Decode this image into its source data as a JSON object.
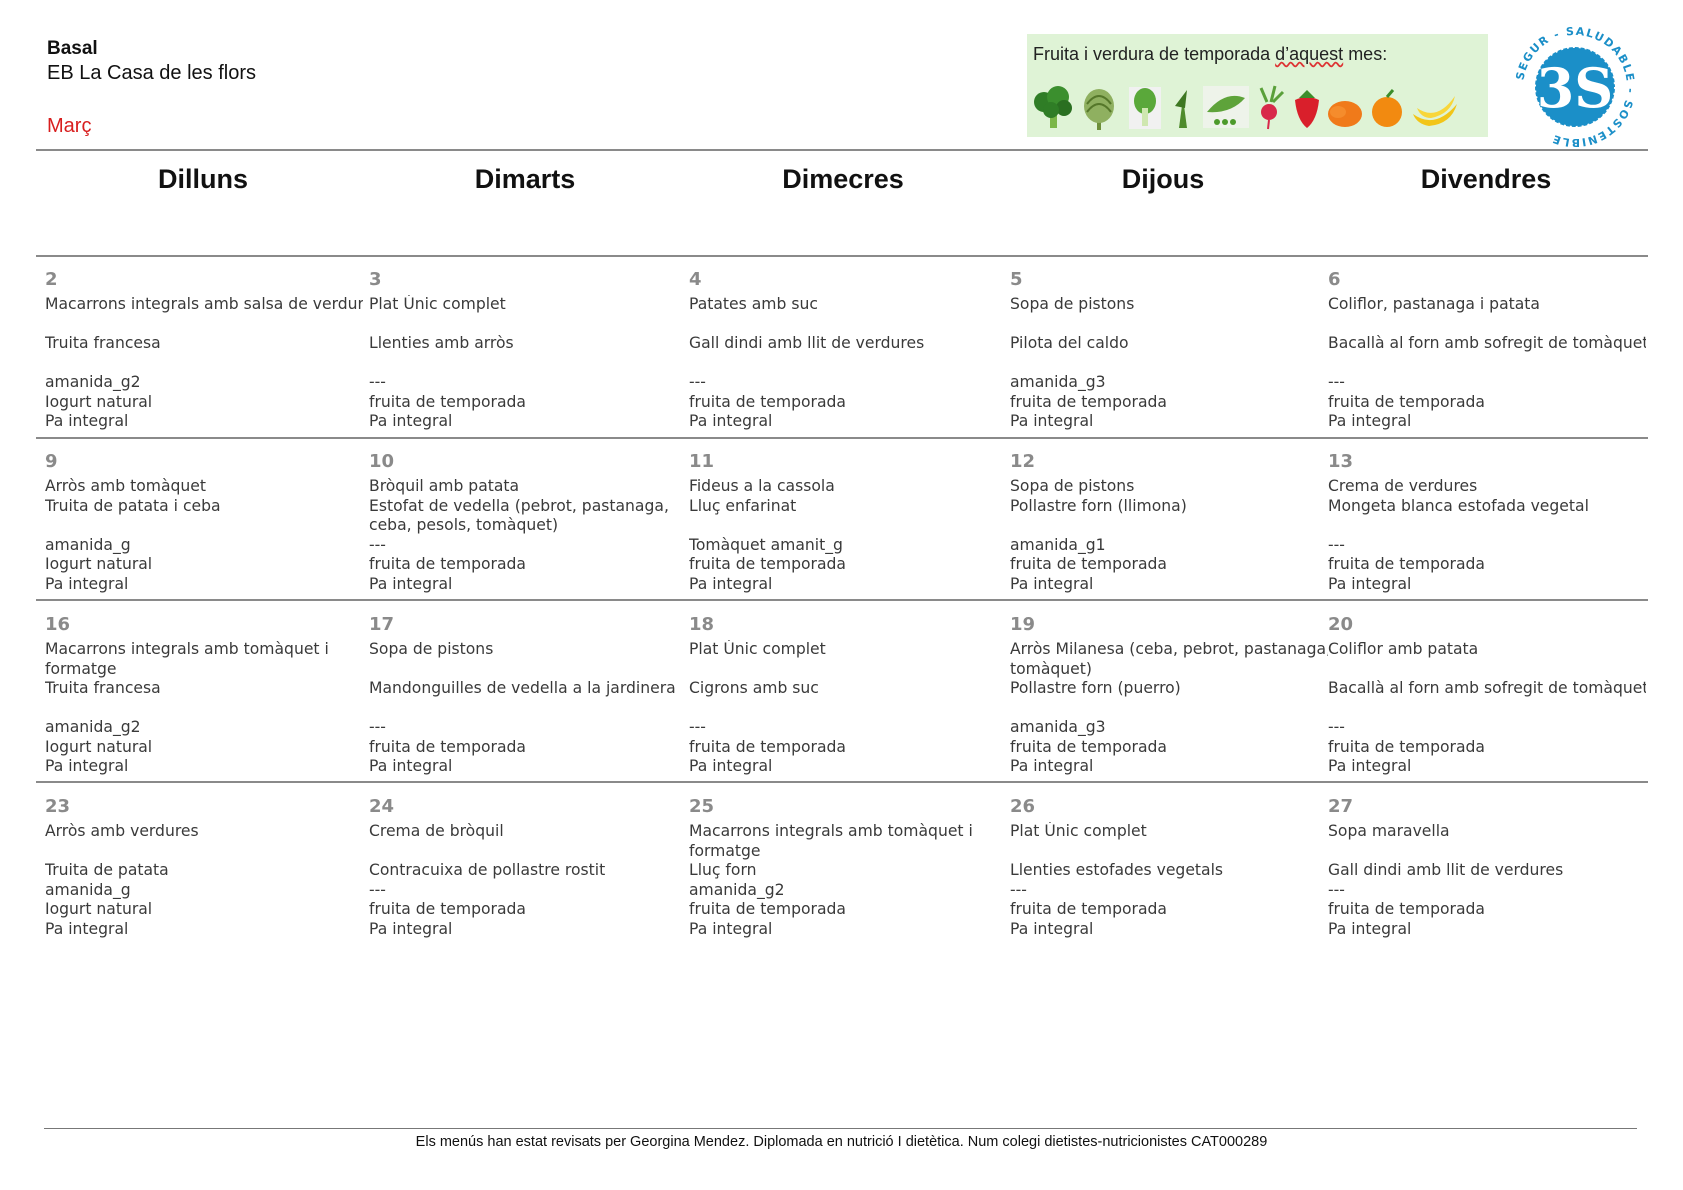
{
  "header": {
    "menu_type": "Basal",
    "school": "EB La Casa de les flors",
    "month": "Març"
  },
  "season_box": {
    "title_pre": "Fruita i verdura de temporada ",
    "title_word1": "d’aquest",
    "title_post": " mes:",
    "icons": [
      "broccoli-icon",
      "artichoke-icon",
      "chard-icon",
      "asparagus-icon",
      "peas-icon",
      "radish-icon",
      "strawberry-icon",
      "mandarin-icon",
      "orange-icon",
      "banana-icon"
    ]
  },
  "logo": {
    "number": "3S",
    "ring_text": "SEGUR - SALUDABLE - SOSTENIBLE"
  },
  "days": [
    "Dilluns",
    "Dimarts",
    "Dimecres",
    "Dijous",
    "Divendres"
  ],
  "colors": {
    "month": "#d81e1e",
    "season_bg": "#dff3d6",
    "logo_blue": "#1b8fc8"
  },
  "weeks": [
    {
      "cells": [
        {
          "num": "2",
          "lines": [
            "Macarrons integrals amb salsa de verdures",
            "",
            "Truita francesa",
            "",
            "amanida_g2",
            "Iogurt natural",
            "Pa integral"
          ]
        },
        {
          "num": "3",
          "lines": [
            "Plat Únic complet",
            "",
            "Llenties amb arròs",
            "",
            "---",
            "fruita de temporada",
            "Pa integral"
          ]
        },
        {
          "num": "4",
          "lines": [
            "Patates amb suc",
            "",
            "Gall dindi amb llit de verdures",
            "",
            "---",
            "fruita de temporada",
            "Pa integral"
          ]
        },
        {
          "num": "5",
          "lines": [
            "Sopa de pistons",
            "",
            "Pilota del caldo",
            "",
            "amanida_g3",
            "fruita de temporada",
            "Pa integral"
          ]
        },
        {
          "num": "6",
          "lines": [
            "Coliflor, pastanaga i patata",
            "",
            "Bacallà al forn amb sofregit de tomàquet",
            "",
            "---",
            "fruita de temporada",
            "Pa integral"
          ]
        }
      ]
    },
    {
      "cells": [
        {
          "num": "9",
          "lines": [
            "Arròs amb tomàquet",
            "Truita de patata i ceba",
            "",
            "amanida_g",
            "Iogurt natural",
            "Pa integral"
          ]
        },
        {
          "num": "10",
          "lines": [
            "Bròquil amb patata",
            "Estofat de vedella (pebrot, pastanaga,",
            "ceba, pesols, tomàquet)",
            "---",
            "fruita de temporada",
            "Pa integral"
          ]
        },
        {
          "num": "11",
          "lines": [
            "Fideus a la cassola",
            "Lluç enfarinat",
            "",
            "Tomàquet amanit_g",
            "fruita de temporada",
            "Pa integral"
          ]
        },
        {
          "num": "12",
          "lines": [
            "Sopa de pistons",
            "Pollastre forn (llimona)",
            "",
            "amanida_g1",
            "fruita de temporada",
            "Pa integral"
          ]
        },
        {
          "num": "13",
          "lines": [
            "Crema de verdures",
            "Mongeta blanca estofada vegetal",
            "",
            "---",
            "fruita de temporada",
            "Pa integral"
          ]
        }
      ]
    },
    {
      "cells": [
        {
          "num": "16",
          "lines": [
            "Macarrons integrals amb tomàquet i",
            "formatge",
            "Truita francesa",
            "",
            "amanida_g2",
            "Iogurt natural",
            "Pa integral"
          ]
        },
        {
          "num": "17",
          "lines": [
            "Sopa de pistons",
            "",
            "Mandonguilles de vedella a la jardinera",
            "",
            "---",
            "fruita de temporada",
            "Pa integral"
          ]
        },
        {
          "num": "18",
          "lines": [
            "Plat Únic complet",
            "",
            "Cigrons amb suc",
            "",
            "---",
            "fruita de temporada",
            "Pa integral"
          ]
        },
        {
          "num": "19",
          "lines": [
            "Arròs Milanesa (ceba, pebrot, pastanaga,",
            "tomàquet)",
            "Pollastre forn (puerro)",
            "",
            "amanida_g3",
            "fruita de temporada",
            "Pa integral"
          ]
        },
        {
          "num": "20",
          "lines": [
            "Coliflor amb patata",
            "",
            "Bacallà al forn amb sofregit de tomàquet",
            "",
            "---",
            "fruita de temporada",
            "Pa integral"
          ]
        }
      ]
    },
    {
      "cells": [
        {
          "num": "23",
          "lines": [
            "Arròs amb verdures",
            "",
            "Truita de patata",
            "amanida_g",
            "Iogurt natural",
            "Pa integral"
          ]
        },
        {
          "num": "24",
          "lines": [
            "Crema de bròquil",
            "",
            "Contracuixa de pollastre rostit",
            "---",
            "fruita de temporada",
            "Pa integral"
          ]
        },
        {
          "num": "25",
          "lines": [
            "Macarrons integrals amb tomàquet i",
            "formatge",
            "Lluç forn",
            "amanida_g2",
            "fruita de temporada",
            "Pa integral"
          ]
        },
        {
          "num": "26",
          "lines": [
            "Plat Únic complet",
            "",
            "Llenties estofades vegetals",
            "---",
            "fruita de temporada",
            "Pa integral"
          ]
        },
        {
          "num": "27",
          "lines": [
            "Sopa maravella",
            "",
            "Gall dindi amb llit de verdures",
            "---",
            "fruita de temporada",
            "Pa integral"
          ]
        }
      ]
    }
  ],
  "footer": "Els menús han estat revisats per Georgina Mendez. Diplomada en nutrició I dietètica. Num colegi dietistes-nutricionistes CAT000289"
}
